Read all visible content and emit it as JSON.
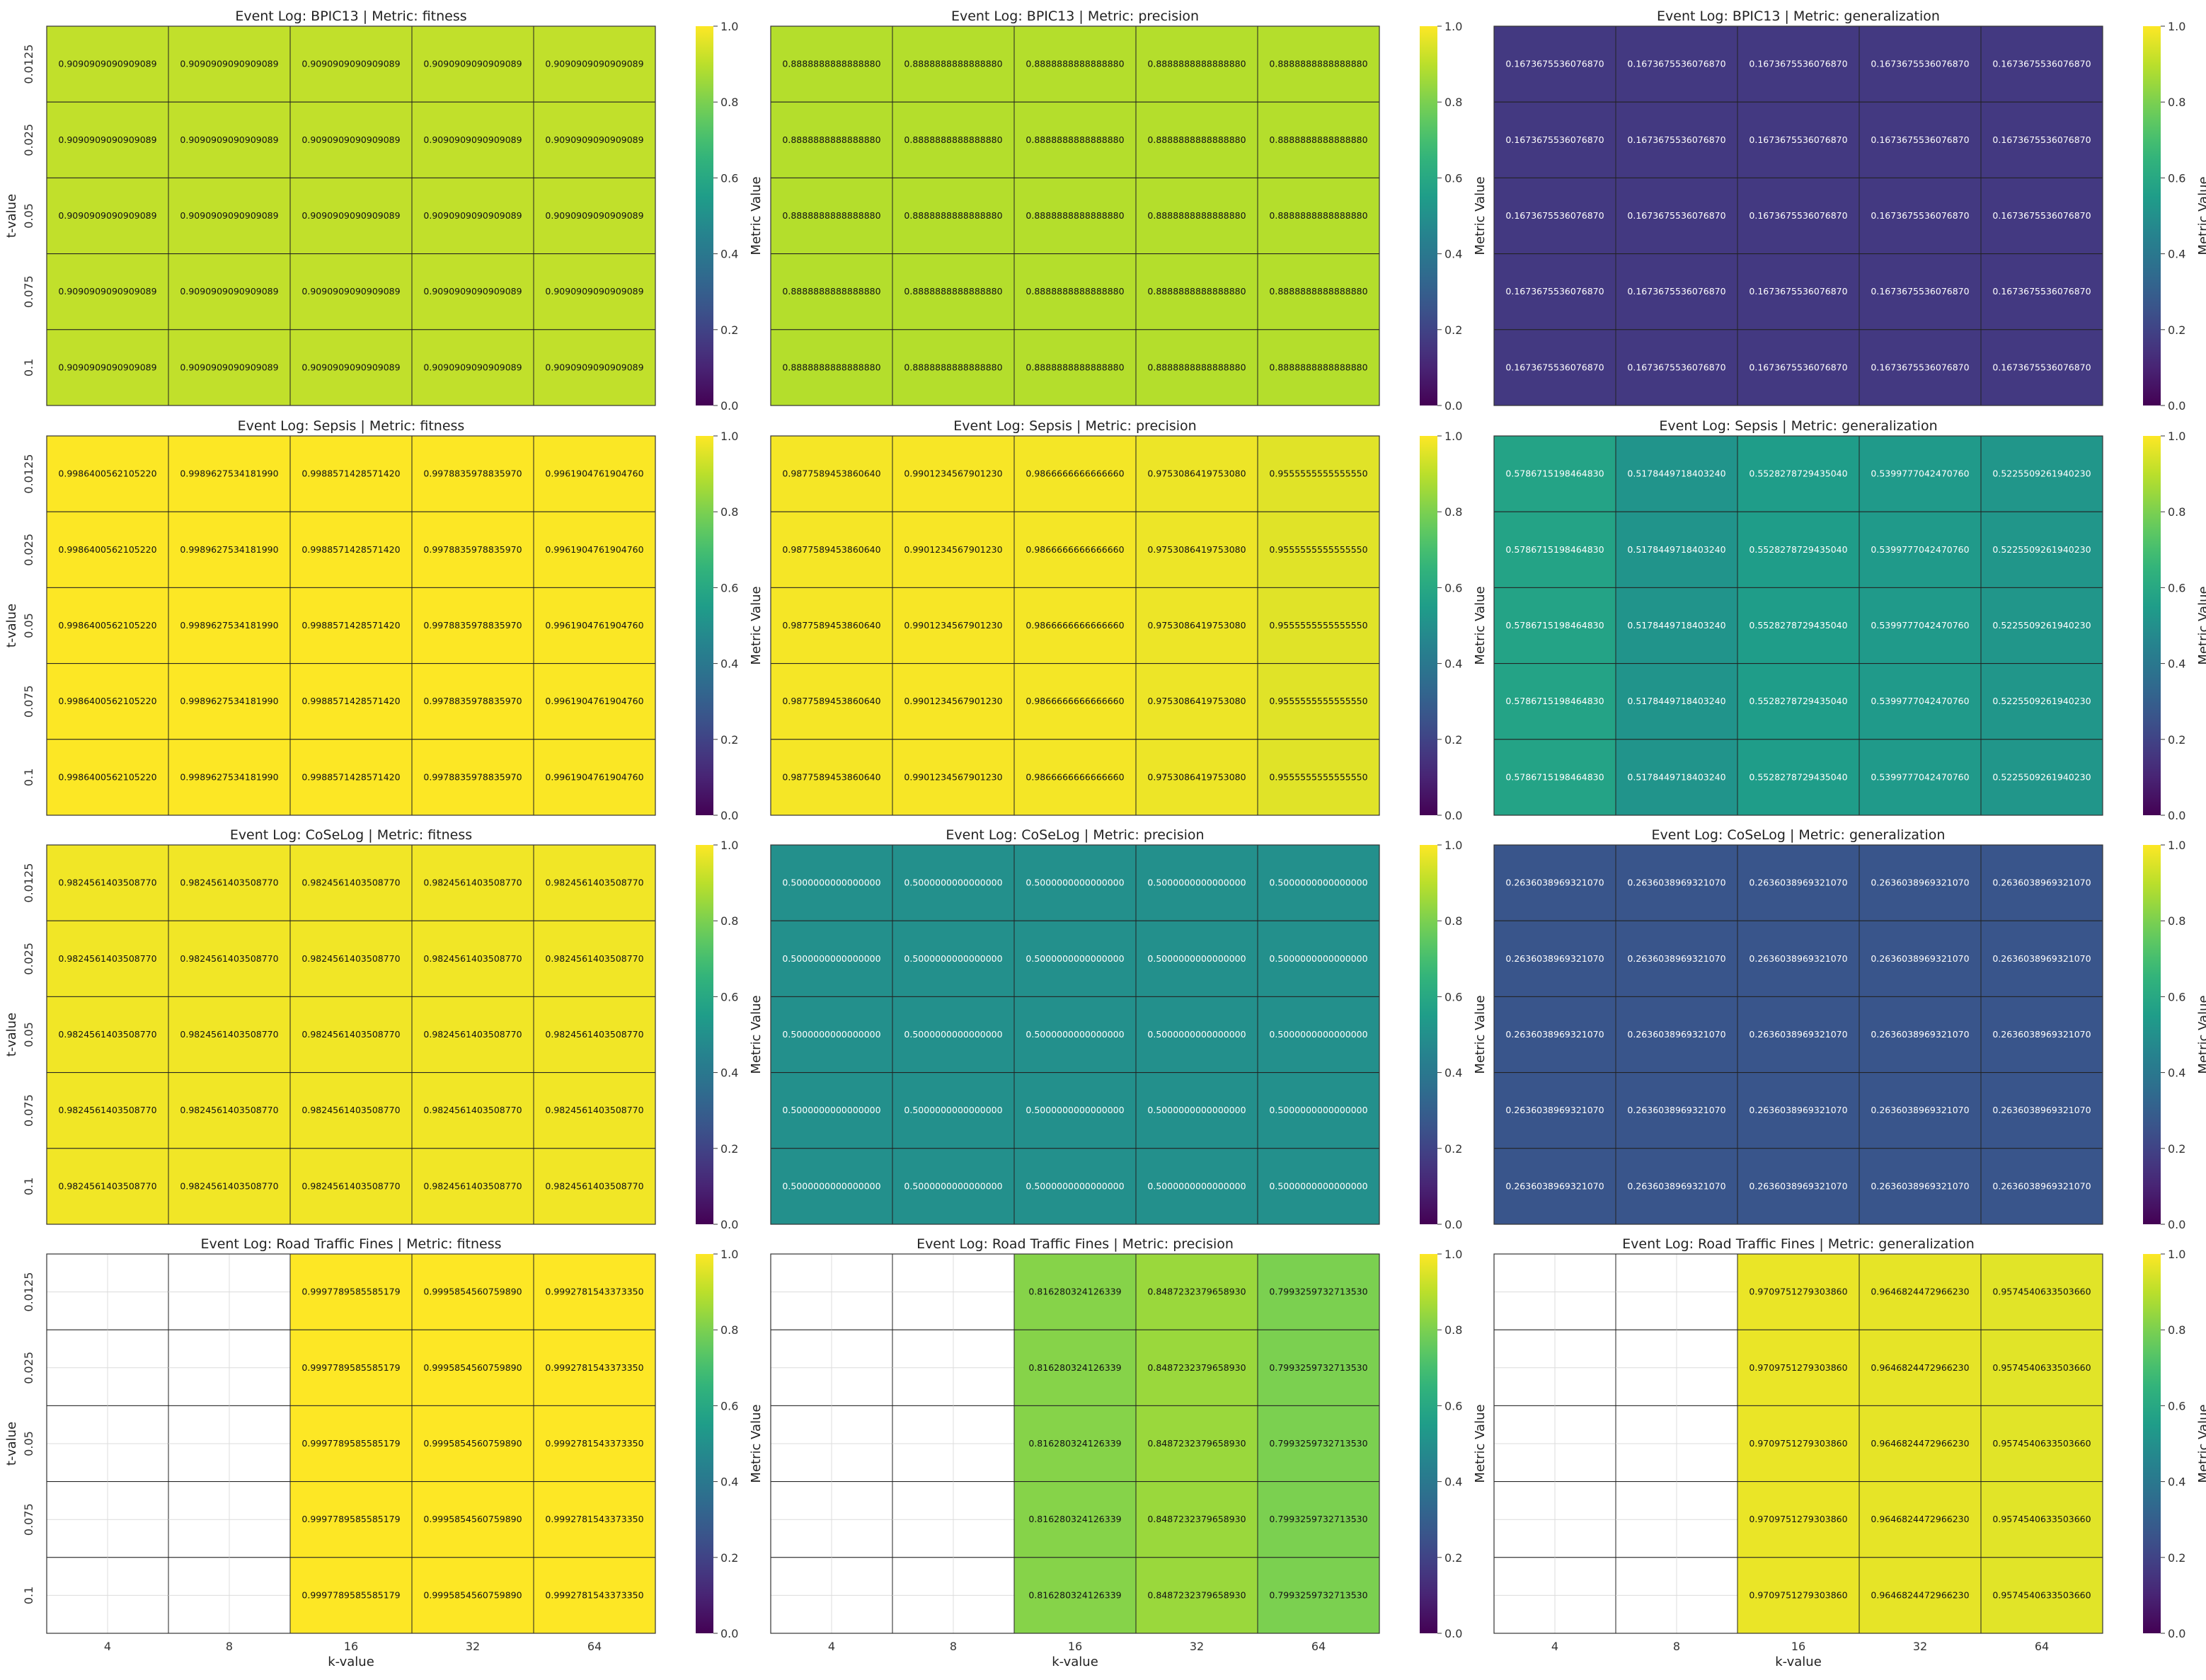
{
  "figure": {
    "colorbar_label": "Metric Value",
    "colorbar_ticks": [
      "0.0",
      "0.2",
      "0.4",
      "0.6",
      "0.8",
      "1.0"
    ],
    "colormap": "viridis",
    "x_axis_label": "k-value",
    "y_axis_label": "t-value",
    "grid_color": "#dcdcdc",
    "cell_border_color": "#222222"
  },
  "chart_data": [
    {
      "type": "heatmap",
      "title": "Event Log: BPIC13 | Metric: fitness",
      "xlabel": "",
      "ylabel": "t-value",
      "x_categories": [
        "4",
        "8",
        "16",
        "32",
        "64"
      ],
      "y_categories": [
        "0.0125",
        "0.025",
        "0.05",
        "0.075",
        "0.1"
      ],
      "values": [
        [
          "0.9090909090909089",
          "0.9090909090909089",
          "0.9090909090909089",
          "0.9090909090909089",
          "0.9090909090909089"
        ],
        [
          "0.9090909090909089",
          "0.9090909090909089",
          "0.9090909090909089",
          "0.9090909090909089",
          "0.9090909090909089"
        ],
        [
          "0.9090909090909089",
          "0.9090909090909089",
          "0.9090909090909089",
          "0.9090909090909089",
          "0.9090909090909089"
        ],
        [
          "0.9090909090909089",
          "0.9090909090909089",
          "0.9090909090909089",
          "0.9090909090909089",
          "0.9090909090909089"
        ],
        [
          "0.9090909090909089",
          "0.9090909090909089",
          "0.9090909090909089",
          "0.9090909090909089",
          "0.9090909090909089"
        ]
      ],
      "color_range": [
        0,
        1
      ]
    },
    {
      "type": "heatmap",
      "title": "Event Log: BPIC13 | Metric: precision",
      "xlabel": "",
      "ylabel": "",
      "x_categories": [
        "4",
        "8",
        "16",
        "32",
        "64"
      ],
      "y_categories": [
        "0.0125",
        "0.025",
        "0.05",
        "0.075",
        "0.1"
      ],
      "values": [
        [
          "0.8888888888888880",
          "0.8888888888888880",
          "0.8888888888888880",
          "0.8888888888888880",
          "0.8888888888888880"
        ],
        [
          "0.8888888888888880",
          "0.8888888888888880",
          "0.8888888888888880",
          "0.8888888888888880",
          "0.8888888888888880"
        ],
        [
          "0.8888888888888880",
          "0.8888888888888880",
          "0.8888888888888880",
          "0.8888888888888880",
          "0.8888888888888880"
        ],
        [
          "0.8888888888888880",
          "0.8888888888888880",
          "0.8888888888888880",
          "0.8888888888888880",
          "0.8888888888888880"
        ],
        [
          "0.8888888888888880",
          "0.8888888888888880",
          "0.8888888888888880",
          "0.8888888888888880",
          "0.8888888888888880"
        ]
      ],
      "color_range": [
        0,
        1
      ]
    },
    {
      "type": "heatmap",
      "title": "Event Log: BPIC13 | Metric: generalization",
      "xlabel": "",
      "ylabel": "",
      "x_categories": [
        "4",
        "8",
        "16",
        "32",
        "64"
      ],
      "y_categories": [
        "0.0125",
        "0.025",
        "0.05",
        "0.075",
        "0.1"
      ],
      "values": [
        [
          "0.1673675536076870",
          "0.1673675536076870",
          "0.1673675536076870",
          "0.1673675536076870",
          "0.1673675536076870"
        ],
        [
          "0.1673675536076870",
          "0.1673675536076870",
          "0.1673675536076870",
          "0.1673675536076870",
          "0.1673675536076870"
        ],
        [
          "0.1673675536076870",
          "0.1673675536076870",
          "0.1673675536076870",
          "0.1673675536076870",
          "0.1673675536076870"
        ],
        [
          "0.1673675536076870",
          "0.1673675536076870",
          "0.1673675536076870",
          "0.1673675536076870",
          "0.1673675536076870"
        ],
        [
          "0.1673675536076870",
          "0.1673675536076870",
          "0.1673675536076870",
          "0.1673675536076870",
          "0.1673675536076870"
        ]
      ],
      "color_range": [
        0,
        1
      ]
    },
    {
      "type": "heatmap",
      "title": "Event Log: Sepsis | Metric: fitness",
      "xlabel": "",
      "ylabel": "t-value",
      "x_categories": [
        "4",
        "8",
        "16",
        "32",
        "64"
      ],
      "y_categories": [
        "0.0125",
        "0.025",
        "0.05",
        "0.075",
        "0.1"
      ],
      "values": [
        [
          "0.9986400562105220",
          "0.9989627534181990",
          "0.9988571428571420",
          "0.9978835978835970",
          "0.9961904761904760"
        ],
        [
          "0.9986400562105220",
          "0.9989627534181990",
          "0.9988571428571420",
          "0.9978835978835970",
          "0.9961904761904760"
        ],
        [
          "0.9986400562105220",
          "0.9989627534181990",
          "0.9988571428571420",
          "0.9978835978835970",
          "0.9961904761904760"
        ],
        [
          "0.9986400562105220",
          "0.9989627534181990",
          "0.9988571428571420",
          "0.9978835978835970",
          "0.9961904761904760"
        ],
        [
          "0.9986400562105220",
          "0.9989627534181990",
          "0.9988571428571420",
          "0.9978835978835970",
          "0.9961904761904760"
        ]
      ],
      "color_range": [
        0,
        1
      ]
    },
    {
      "type": "heatmap",
      "title": "Event Log: Sepsis | Metric: precision",
      "xlabel": "",
      "ylabel": "",
      "x_categories": [
        "4",
        "8",
        "16",
        "32",
        "64"
      ],
      "y_categories": [
        "0.0125",
        "0.025",
        "0.05",
        "0.075",
        "0.1"
      ],
      "values": [
        [
          "0.9877589453860640",
          "0.9901234567901230",
          "0.9866666666666660",
          "0.9753086419753080",
          "0.9555555555555550"
        ],
        [
          "0.9877589453860640",
          "0.9901234567901230",
          "0.9866666666666660",
          "0.9753086419753080",
          "0.9555555555555550"
        ],
        [
          "0.9877589453860640",
          "0.9901234567901230",
          "0.9866666666666660",
          "0.9753086419753080",
          "0.9555555555555550"
        ],
        [
          "0.9877589453860640",
          "0.9901234567901230",
          "0.9866666666666660",
          "0.9753086419753080",
          "0.9555555555555550"
        ],
        [
          "0.9877589453860640",
          "0.9901234567901230",
          "0.9866666666666660",
          "0.9753086419753080",
          "0.9555555555555550"
        ]
      ],
      "color_range": [
        0,
        1
      ]
    },
    {
      "type": "heatmap",
      "title": "Event Log: Sepsis | Metric: generalization",
      "xlabel": "",
      "ylabel": "",
      "x_categories": [
        "4",
        "8",
        "16",
        "32",
        "64"
      ],
      "y_categories": [
        "0.0125",
        "0.025",
        "0.05",
        "0.075",
        "0.1"
      ],
      "values": [
        [
          "0.5786715198464830",
          "0.5178449718403240",
          "0.5528278729435040",
          "0.5399777042470760",
          "0.5225509261940230"
        ],
        [
          "0.5786715198464830",
          "0.5178449718403240",
          "0.5528278729435040",
          "0.5399777042470760",
          "0.5225509261940230"
        ],
        [
          "0.5786715198464830",
          "0.5178449718403240",
          "0.5528278729435040",
          "0.5399777042470760",
          "0.5225509261940230"
        ],
        [
          "0.5786715198464830",
          "0.5178449718403240",
          "0.5528278729435040",
          "0.5399777042470760",
          "0.5225509261940230"
        ],
        [
          "0.5786715198464830",
          "0.5178449718403240",
          "0.5528278729435040",
          "0.5399777042470760",
          "0.5225509261940230"
        ]
      ],
      "color_range": [
        0,
        1
      ]
    },
    {
      "type": "heatmap",
      "title": "Event Log: CoSeLog | Metric: fitness",
      "xlabel": "",
      "ylabel": "t-value",
      "x_categories": [
        "4",
        "8",
        "16",
        "32",
        "64"
      ],
      "y_categories": [
        "0.0125",
        "0.025",
        "0.05",
        "0.075",
        "0.1"
      ],
      "values": [
        [
          "0.9824561403508770",
          "0.9824561403508770",
          "0.9824561403508770",
          "0.9824561403508770",
          "0.9824561403508770"
        ],
        [
          "0.9824561403508770",
          "0.9824561403508770",
          "0.9824561403508770",
          "0.9824561403508770",
          "0.9824561403508770"
        ],
        [
          "0.9824561403508770",
          "0.9824561403508770",
          "0.9824561403508770",
          "0.9824561403508770",
          "0.9824561403508770"
        ],
        [
          "0.9824561403508770",
          "0.9824561403508770",
          "0.9824561403508770",
          "0.9824561403508770",
          "0.9824561403508770"
        ],
        [
          "0.9824561403508770",
          "0.9824561403508770",
          "0.9824561403508770",
          "0.9824561403508770",
          "0.9824561403508770"
        ]
      ],
      "color_range": [
        0,
        1
      ]
    },
    {
      "type": "heatmap",
      "title": "Event Log: CoSeLog | Metric: precision",
      "xlabel": "",
      "ylabel": "",
      "x_categories": [
        "4",
        "8",
        "16",
        "32",
        "64"
      ],
      "y_categories": [
        "0.0125",
        "0.025",
        "0.05",
        "0.075",
        "0.1"
      ],
      "values": [
        [
          "0.5000000000000000",
          "0.5000000000000000",
          "0.5000000000000000",
          "0.5000000000000000",
          "0.5000000000000000"
        ],
        [
          "0.5000000000000000",
          "0.5000000000000000",
          "0.5000000000000000",
          "0.5000000000000000",
          "0.5000000000000000"
        ],
        [
          "0.5000000000000000",
          "0.5000000000000000",
          "0.5000000000000000",
          "0.5000000000000000",
          "0.5000000000000000"
        ],
        [
          "0.5000000000000000",
          "0.5000000000000000",
          "0.5000000000000000",
          "0.5000000000000000",
          "0.5000000000000000"
        ],
        [
          "0.5000000000000000",
          "0.5000000000000000",
          "0.5000000000000000",
          "0.5000000000000000",
          "0.5000000000000000"
        ]
      ],
      "color_range": [
        0,
        1
      ]
    },
    {
      "type": "heatmap",
      "title": "Event Log: CoSeLog | Metric: generalization",
      "xlabel": "",
      "ylabel": "",
      "x_categories": [
        "4",
        "8",
        "16",
        "32",
        "64"
      ],
      "y_categories": [
        "0.0125",
        "0.025",
        "0.05",
        "0.075",
        "0.1"
      ],
      "values": [
        [
          "0.2636038969321070",
          "0.2636038969321070",
          "0.2636038969321070",
          "0.2636038969321070",
          "0.2636038969321070"
        ],
        [
          "0.2636038969321070",
          "0.2636038969321070",
          "0.2636038969321070",
          "0.2636038969321070",
          "0.2636038969321070"
        ],
        [
          "0.2636038969321070",
          "0.2636038969321070",
          "0.2636038969321070",
          "0.2636038969321070",
          "0.2636038969321070"
        ],
        [
          "0.2636038969321070",
          "0.2636038969321070",
          "0.2636038969321070",
          "0.2636038969321070",
          "0.2636038969321070"
        ],
        [
          "0.2636038969321070",
          "0.2636038969321070",
          "0.2636038969321070",
          "0.2636038969321070",
          "0.2636038969321070"
        ]
      ],
      "color_range": [
        0,
        1
      ]
    },
    {
      "type": "heatmap",
      "title": "Event Log: Road Traffic Fines | Metric: fitness",
      "xlabel": "k-value",
      "ylabel": "t-value",
      "x_categories": [
        "4",
        "8",
        "16",
        "32",
        "64"
      ],
      "y_categories": [
        "0.0125",
        "0.025",
        "0.05",
        "0.075",
        "0.1"
      ],
      "values": [
        [
          null,
          null,
          "0.9997789585585179",
          "0.9995854560759890",
          "0.9992781543373350"
        ],
        [
          null,
          null,
          "0.9997789585585179",
          "0.9995854560759890",
          "0.9992781543373350"
        ],
        [
          null,
          null,
          "0.9997789585585179",
          "0.9995854560759890",
          "0.9992781543373350"
        ],
        [
          null,
          null,
          "0.9997789585585179",
          "0.9995854560759890",
          "0.9992781543373350"
        ],
        [
          null,
          null,
          "0.9997789585585179",
          "0.9995854560759890",
          "0.9992781543373350"
        ]
      ],
      "color_range": [
        0,
        1
      ]
    },
    {
      "type": "heatmap",
      "title": "Event Log: Road Traffic Fines | Metric: precision",
      "xlabel": "k-value",
      "ylabel": "",
      "x_categories": [
        "4",
        "8",
        "16",
        "32",
        "64"
      ],
      "y_categories": [
        "0.0125",
        "0.025",
        "0.05",
        "0.075",
        "0.1"
      ],
      "values": [
        [
          null,
          null,
          "0.816280324126339",
          "0.8487232379658930",
          "0.7993259732713530"
        ],
        [
          null,
          null,
          "0.816280324126339",
          "0.8487232379658930",
          "0.7993259732713530"
        ],
        [
          null,
          null,
          "0.816280324126339",
          "0.8487232379658930",
          "0.7993259732713530"
        ],
        [
          null,
          null,
          "0.816280324126339",
          "0.8487232379658930",
          "0.7993259732713530"
        ],
        [
          null,
          null,
          "0.816280324126339",
          "0.8487232379658930",
          "0.7993259732713530"
        ]
      ],
      "color_range": [
        0,
        1
      ]
    },
    {
      "type": "heatmap",
      "title": "Event Log: Road Traffic Fines | Metric: generalization",
      "xlabel": "k-value",
      "ylabel": "",
      "x_categories": [
        "4",
        "8",
        "16",
        "32",
        "64"
      ],
      "y_categories": [
        "0.0125",
        "0.025",
        "0.05",
        "0.075",
        "0.1"
      ],
      "values": [
        [
          null,
          null,
          "0.9709751279303860",
          "0.9646824472966230",
          "0.9574540633503660"
        ],
        [
          null,
          null,
          "0.9709751279303860",
          "0.9646824472966230",
          "0.9574540633503660"
        ],
        [
          null,
          null,
          "0.9709751279303860",
          "0.9646824472966230",
          "0.9574540633503660"
        ],
        [
          null,
          null,
          "0.9709751279303860",
          "0.9646824472966230",
          "0.9574540633503660"
        ],
        [
          null,
          null,
          "0.9709751279303860",
          "0.9646824472966230",
          "0.9574540633503660"
        ]
      ],
      "color_range": [
        0,
        1
      ]
    }
  ]
}
